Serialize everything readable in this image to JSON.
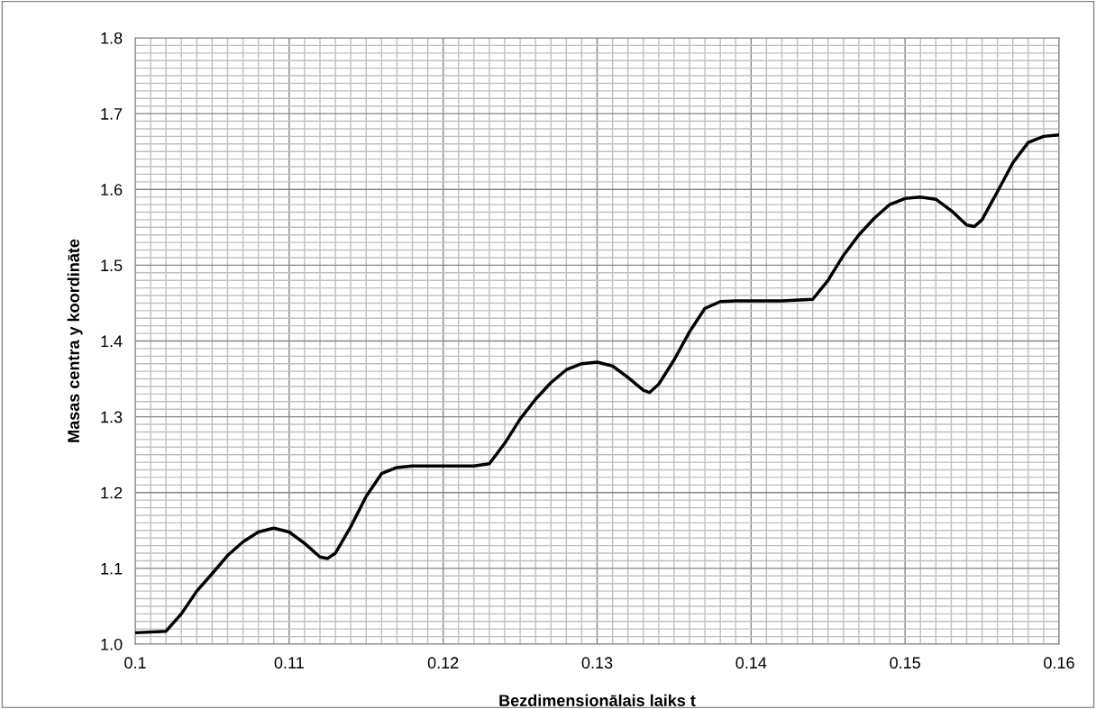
{
  "chart_data": {
    "type": "line",
    "xlabel": "Bezdimensionālais laiks t",
    "ylabel": "Masas centra y koordināte",
    "x": [
      0.1,
      0.102,
      0.103,
      0.104,
      0.105,
      0.106,
      0.107,
      0.108,
      0.109,
      0.11,
      0.111,
      0.112,
      0.1125,
      0.113,
      0.114,
      0.115,
      0.116,
      0.117,
      0.118,
      0.12,
      0.122,
      0.123,
      0.124,
      0.125,
      0.126,
      0.127,
      0.128,
      0.129,
      0.13,
      0.131,
      0.132,
      0.133,
      0.1334,
      0.134,
      0.135,
      0.136,
      0.137,
      0.138,
      0.139,
      0.142,
      0.144,
      0.145,
      0.146,
      0.147,
      0.148,
      0.149,
      0.15,
      0.151,
      0.152,
      0.153,
      0.154,
      0.1545,
      0.155,
      0.156,
      0.157,
      0.158,
      0.159,
      0.16
    ],
    "series": [
      {
        "color": "#000000",
        "values": [
          1.015,
          1.017,
          1.04,
          1.07,
          1.093,
          1.117,
          1.135,
          1.148,
          1.153,
          1.148,
          1.133,
          1.115,
          1.113,
          1.12,
          1.155,
          1.195,
          1.225,
          1.233,
          1.235,
          1.235,
          1.235,
          1.238,
          1.265,
          1.297,
          1.323,
          1.345,
          1.362,
          1.37,
          1.372,
          1.367,
          1.352,
          1.335,
          1.332,
          1.343,
          1.375,
          1.412,
          1.443,
          1.452,
          1.453,
          1.453,
          1.455,
          1.48,
          1.513,
          1.54,
          1.562,
          1.58,
          1.588,
          1.59,
          1.587,
          1.572,
          1.553,
          1.551,
          1.56,
          1.597,
          1.635,
          1.662,
          1.67,
          1.672
        ]
      }
    ],
    "xlim": [
      0.1,
      0.16
    ],
    "ylim": [
      1.0,
      1.8
    ],
    "xticks": [
      0.1,
      {
        "value": 0.101,
        "label": null
      },
      {
        "value": 0.102,
        "label": null
      },
      {
        "value": 0.103,
        "label": null
      },
      {
        "value": 0.104,
        "label": null
      },
      {
        "value": 0.105,
        "label": null
      },
      {
        "value": 0.106,
        "label": null
      },
      {
        "value": 0.107,
        "label": null
      },
      {
        "value": 0.108,
        "label": null
      },
      {
        "value": 0.109,
        "label": null
      },
      0.11,
      {
        "value": 0.111,
        "label": null
      },
      {
        "value": 0.112,
        "label": null
      },
      {
        "value": 0.113,
        "label": null
      },
      {
        "value": 0.114,
        "label": null
      },
      {
        "value": 0.115,
        "label": null
      },
      {
        "value": 0.116,
        "label": null
      },
      {
        "value": 0.117,
        "label": null
      },
      {
        "value": 0.118,
        "label": null
      },
      {
        "value": 0.119,
        "label": null
      },
      0.12,
      {
        "value": 0.121,
        "label": null
      },
      {
        "value": 0.122,
        "label": null
      },
      {
        "value": 0.123,
        "label": null
      },
      {
        "value": 0.124,
        "label": null
      },
      {
        "value": 0.125,
        "label": null
      },
      {
        "value": 0.126,
        "label": null
      },
      {
        "value": 0.127,
        "label": null
      },
      {
        "value": 0.128,
        "label": null
      },
      {
        "value": 0.129,
        "label": null
      },
      0.13,
      {
        "value": 0.131,
        "label": null
      },
      {
        "value": 0.132,
        "label": null
      },
      {
        "value": 0.133,
        "label": null
      },
      {
        "value": 0.134,
        "label": null
      },
      {
        "value": 0.135,
        "label": null
      },
      {
        "value": 0.136,
        "label": null
      },
      {
        "value": 0.137,
        "label": null
      },
      {
        "value": 0.138,
        "label": null
      },
      {
        "value": 0.139,
        "label": null
      },
      0.14,
      {
        "value": 0.141,
        "label": null
      },
      {
        "value": 0.142,
        "label": null
      },
      {
        "value": 0.143,
        "label": null
      },
      {
        "value": 0.144,
        "label": null
      },
      {
        "value": 0.145,
        "label": null
      },
      {
        "value": 0.146,
        "label": null
      },
      {
        "value": 0.147,
        "label": null
      },
      {
        "value": 0.148,
        "label": null
      },
      {
        "value": 0.149,
        "label": null
      },
      0.15,
      {
        "value": 0.151,
        "label": null
      },
      {
        "value": 0.152,
        "label": null
      },
      {
        "value": 0.153,
        "label": null
      },
      {
        "value": 0.154,
        "label": null
      },
      {
        "value": 0.155,
        "label": null
      },
      {
        "value": 0.156,
        "label": null
      },
      {
        "value": 0.157,
        "label": null
      },
      {
        "value": 0.158,
        "label": null
      },
      {
        "value": 0.159,
        "label": null
      },
      0.16
    ],
    "yticks": [
      {
        "value": 1.0,
        "label": "1.0"
      },
      {
        "value": 1.01,
        "label": null
      },
      {
        "value": 1.02,
        "label": null
      },
      {
        "value": 1.03,
        "label": null
      },
      {
        "value": 1.04,
        "label": null
      },
      {
        "value": 1.05,
        "label": null
      },
      {
        "value": 1.06,
        "label": null
      },
      {
        "value": 1.07,
        "label": null
      },
      {
        "value": 1.08,
        "label": null
      },
      {
        "value": 1.09,
        "label": null
      },
      1.1,
      {
        "value": 1.11,
        "label": null
      },
      {
        "value": 1.12,
        "label": null
      },
      {
        "value": 1.13,
        "label": null
      },
      {
        "value": 1.14,
        "label": null
      },
      {
        "value": 1.15,
        "label": null
      },
      {
        "value": 1.16,
        "label": null
      },
      {
        "value": 1.17,
        "label": null
      },
      {
        "value": 1.18,
        "label": null
      },
      {
        "value": 1.19,
        "label": null
      },
      1.2,
      {
        "value": 1.21,
        "label": null
      },
      {
        "value": 1.22,
        "label": null
      },
      {
        "value": 1.23,
        "label": null
      },
      {
        "value": 1.24,
        "label": null
      },
      {
        "value": 1.25,
        "label": null
      },
      {
        "value": 1.26,
        "label": null
      },
      {
        "value": 1.27,
        "label": null
      },
      {
        "value": 1.28,
        "label": null
      },
      {
        "value": 1.29,
        "label": null
      },
      1.3,
      {
        "value": 1.31,
        "label": null
      },
      {
        "value": 1.32,
        "label": null
      },
      {
        "value": 1.33,
        "label": null
      },
      {
        "value": 1.34,
        "label": null
      },
      {
        "value": 1.35,
        "label": null
      },
      {
        "value": 1.36,
        "label": null
      },
      {
        "value": 1.37,
        "label": null
      },
      {
        "value": 1.38,
        "label": null
      },
      {
        "value": 1.39,
        "label": null
      },
      1.4,
      {
        "value": 1.41,
        "label": null
      },
      {
        "value": 1.42,
        "label": null
      },
      {
        "value": 1.43,
        "label": null
      },
      {
        "value": 1.44,
        "label": null
      },
      {
        "value": 1.45,
        "label": null
      },
      {
        "value": 1.46,
        "label": null
      },
      {
        "value": 1.47,
        "label": null
      },
      {
        "value": 1.48,
        "label": null
      },
      {
        "value": 1.49,
        "label": null
      },
      1.5,
      {
        "value": 1.51,
        "label": null
      },
      {
        "value": 1.52,
        "label": null
      },
      {
        "value": 1.53,
        "label": null
      },
      {
        "value": 1.54,
        "label": null
      },
      {
        "value": 1.55,
        "label": null
      },
      {
        "value": 1.56,
        "label": null
      },
      {
        "value": 1.57,
        "label": null
      },
      {
        "value": 1.58,
        "label": null
      },
      {
        "value": 1.59,
        "label": null
      },
      1.6,
      {
        "value": 1.61,
        "label": null
      },
      {
        "value": 1.62,
        "label": null
      },
      {
        "value": 1.63,
        "label": null
      },
      {
        "value": 1.64,
        "label": null
      },
      {
        "value": 1.65,
        "label": null
      },
      {
        "value": 1.66,
        "label": null
      },
      {
        "value": 1.67,
        "label": null
      },
      {
        "value": 1.68,
        "label": null
      },
      {
        "value": 1.69,
        "label": null
      },
      1.7,
      {
        "value": 1.71,
        "label": null
      },
      {
        "value": 1.72,
        "label": null
      },
      {
        "value": 1.73,
        "label": null
      },
      {
        "value": 1.74,
        "label": null
      },
      {
        "value": 1.75,
        "label": null
      },
      {
        "value": 1.76,
        "label": null
      },
      {
        "value": 1.77,
        "label": null
      },
      {
        "value": 1.78,
        "label": null
      },
      {
        "value": 1.79,
        "label": null
      },
      1.8
    ],
    "grid": true,
    "line_style": "solid"
  }
}
